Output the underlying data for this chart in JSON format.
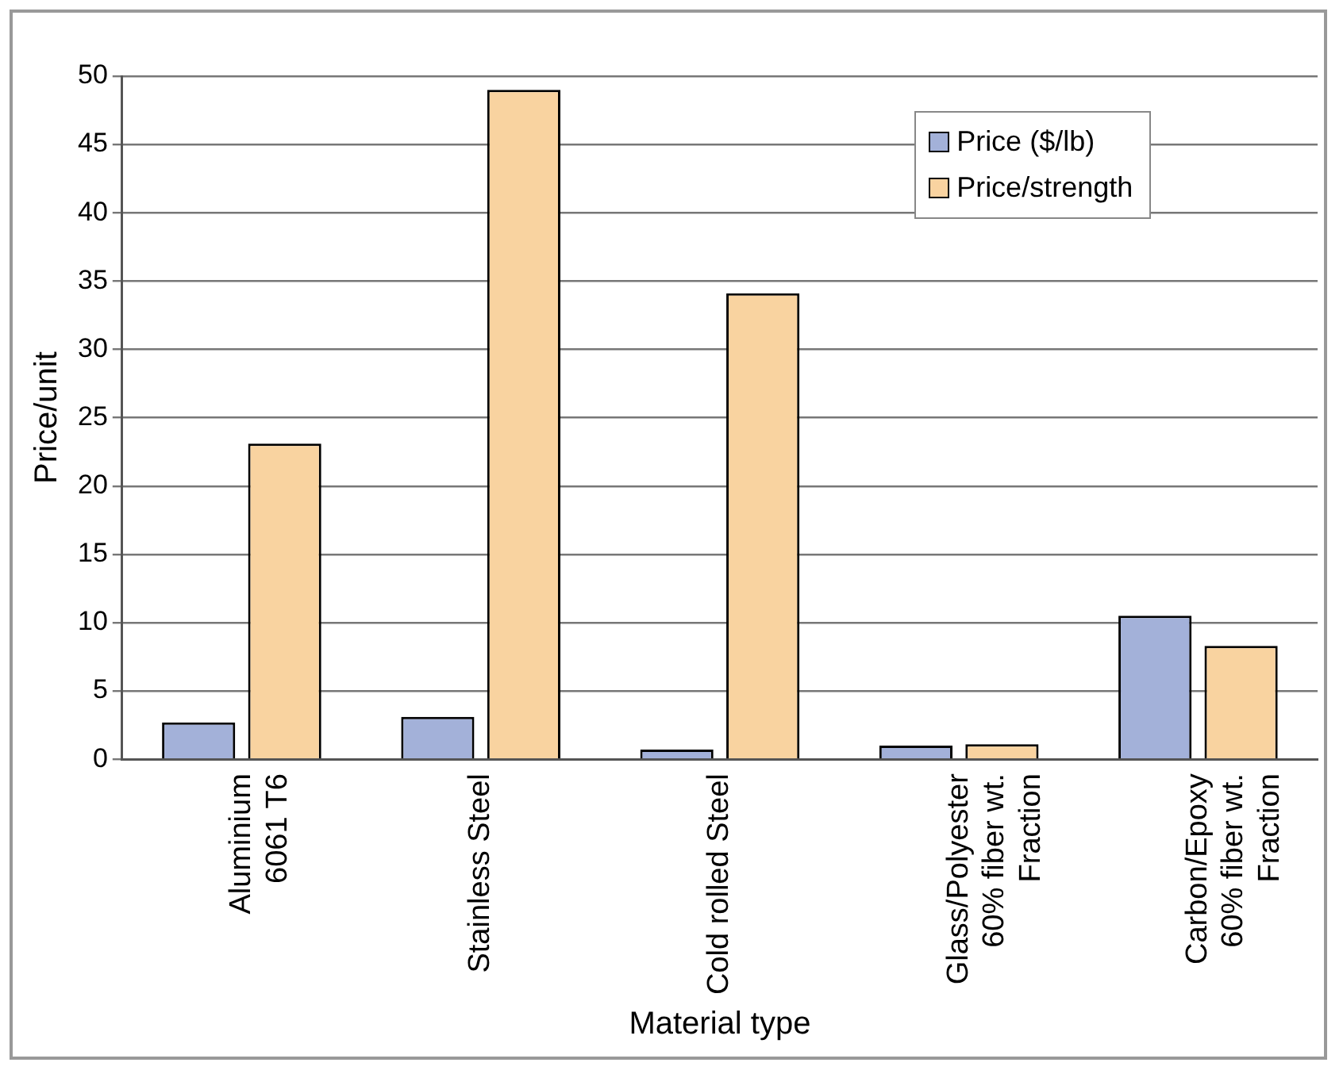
{
  "chart_data": {
    "type": "bar",
    "xlabel": "Material type",
    "ylabel": "Price/unit",
    "categories": [
      "Aluminium\n6061 T6",
      "Stainless Steel",
      "Cold rolled Steel",
      "Glass/Polyester\n60% fiber wt.\nFraction",
      "Carbon/Epoxy\n60% fiber wt.\nFraction"
    ],
    "series": [
      {
        "name": "Price ($/lb)",
        "color": "#a3b1d9",
        "values": [
          2.7,
          3.1,
          0.7,
          1.0,
          10.5
        ]
      },
      {
        "name": "Price/strength",
        "color": "#f9d3a0",
        "values": [
          23.1,
          49.0,
          34.1,
          1.1,
          8.3
        ]
      }
    ],
    "ylim": [
      0,
      50
    ],
    "yticks": [
      0,
      5,
      10,
      15,
      20,
      25,
      30,
      35,
      40,
      45,
      50
    ],
    "grid": "y",
    "legend": "top right"
  }
}
